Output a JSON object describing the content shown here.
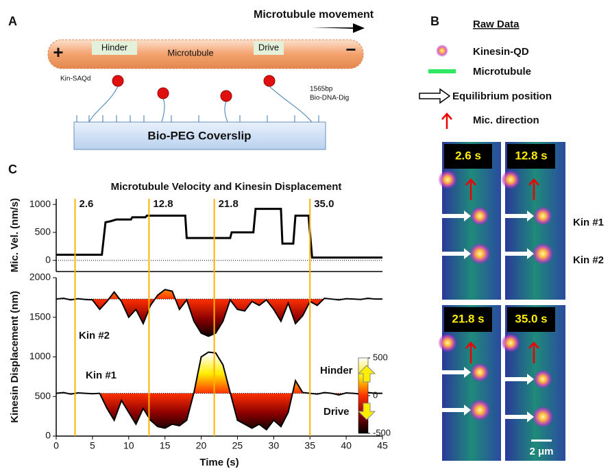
{
  "panel_a": {
    "label": "A",
    "movement": "Microtubule movement",
    "hinder": "Hinder",
    "drive": "Drive",
    "microtubule": "Microtubule",
    "plus": "+",
    "minus": "−",
    "kin": "Kin-SAQd",
    "dna": [
      "1565bp",
      "Bio-DNA-Dig"
    ],
    "coverslip": "Bio-PEG Coverslip"
  },
  "panel_b": {
    "label": "B",
    "title": "Raw Data",
    "legend": [
      "Kinesin-QD",
      "Microtubule",
      "Equilibrium position",
      "Mic. direction"
    ],
    "frames": [
      "2.6 s",
      "12.8 s",
      "21.8 s",
      "35.0 s"
    ],
    "kin_labels": [
      "Kin #1",
      "Kin #2"
    ],
    "scale": "2 μm"
  },
  "panel_c": {
    "label": "C"
  },
  "chart_data": {
    "type": "line",
    "title": "Microtubule Velocity and Kinesin Displacement",
    "xlabel": "Time (s)",
    "xlim": [
      0,
      45
    ],
    "xticks": [
      0,
      5,
      10,
      15,
      20,
      25,
      30,
      35,
      40,
      45
    ],
    "markers": [
      2.6,
      12.8,
      21.8,
      {
        "value": 35,
        "label": "35.0"
      }
    ],
    "marker_color": "#ffb300",
    "panels": [
      {
        "ylabel": "Mic. Vel. (nm/s)",
        "ylim": [
          -200,
          1100
        ],
        "yticks": [
          0,
          500,
          1000
        ],
        "zero_line": true,
        "series": [
          {
            "color": "#000000",
            "x": [
              0,
              6.3,
              6.8,
              7.5,
              8.3,
              10.3,
              10.5,
              12.3,
              12.5,
              17.8,
              18,
              24,
              24.2,
              27.2,
              27.5,
              31,
              31.2,
              32.7,
              33,
              34.8,
              35.3,
              45
            ],
            "values": [
              100,
              100,
              680,
              700,
              730,
              730,
              770,
              770,
              800,
              800,
              400,
              400,
              500,
              500,
              920,
              920,
              300,
              300,
              800,
              800,
              50,
              50
            ]
          }
        ]
      },
      {
        "ylabel": "Kinesin Displacement (nm)",
        "ylim": [
          0,
          2000
        ],
        "yticks": [
          0,
          500,
          1000,
          1500,
          2000
        ],
        "x": [
          0,
          1,
          2,
          3,
          4,
          5,
          6,
          7,
          8,
          9,
          10,
          11,
          12,
          13,
          14,
          15,
          16,
          17,
          18,
          19,
          20,
          21,
          22,
          23,
          24,
          25,
          26,
          27,
          28,
          29,
          30,
          31,
          32,
          33,
          34,
          35,
          36,
          37,
          38,
          39,
          40,
          41,
          42,
          43,
          44,
          45
        ],
        "series": [
          {
            "name": "Kin #2",
            "color": "#000000",
            "baseline": 1730,
            "values": [
              1730,
              1740,
              1720,
              1735,
              1725,
              1720,
              1600,
              1700,
              1820,
              1700,
              1500,
              1600,
              1420,
              1650,
              1780,
              1850,
              1830,
              1600,
              1720,
              1450,
              1300,
              1260,
              1300,
              1450,
              1720,
              1600,
              1580,
              1700,
              1650,
              1720,
              1600,
              1450,
              1680,
              1420,
              1520,
              1700,
              1650,
              1740,
              1730,
              1720,
              1735,
              1730,
              1725,
              1740,
              1730,
              1730
            ]
          },
          {
            "name": "Kin #1",
            "color": "#000000",
            "baseline": 540,
            "values": [
              540,
              550,
              530,
              545,
              540,
              535,
              540,
              350,
              200,
              450,
              300,
              150,
              350,
              200,
              120,
              100,
              150,
              130,
              200,
              550,
              1000,
              1060,
              1050,
              900,
              550,
              200,
              150,
              100,
              150,
              80,
              200,
              120,
              300,
              700,
              550,
              540,
              530,
              550,
              540,
              520,
              545,
              540,
              530,
              550,
              540,
              540
            ]
          }
        ],
        "annotations": [
          "Hinder",
          "Drive"
        ],
        "colorbar": {
          "lim": [
            -500,
            500
          ],
          "ticks": [
            500,
            0,
            -500
          ],
          "colors": [
            "#ffffff",
            "#ffee00",
            "#ff3000",
            "#8b0000",
            "#000000"
          ]
        }
      }
    ]
  }
}
